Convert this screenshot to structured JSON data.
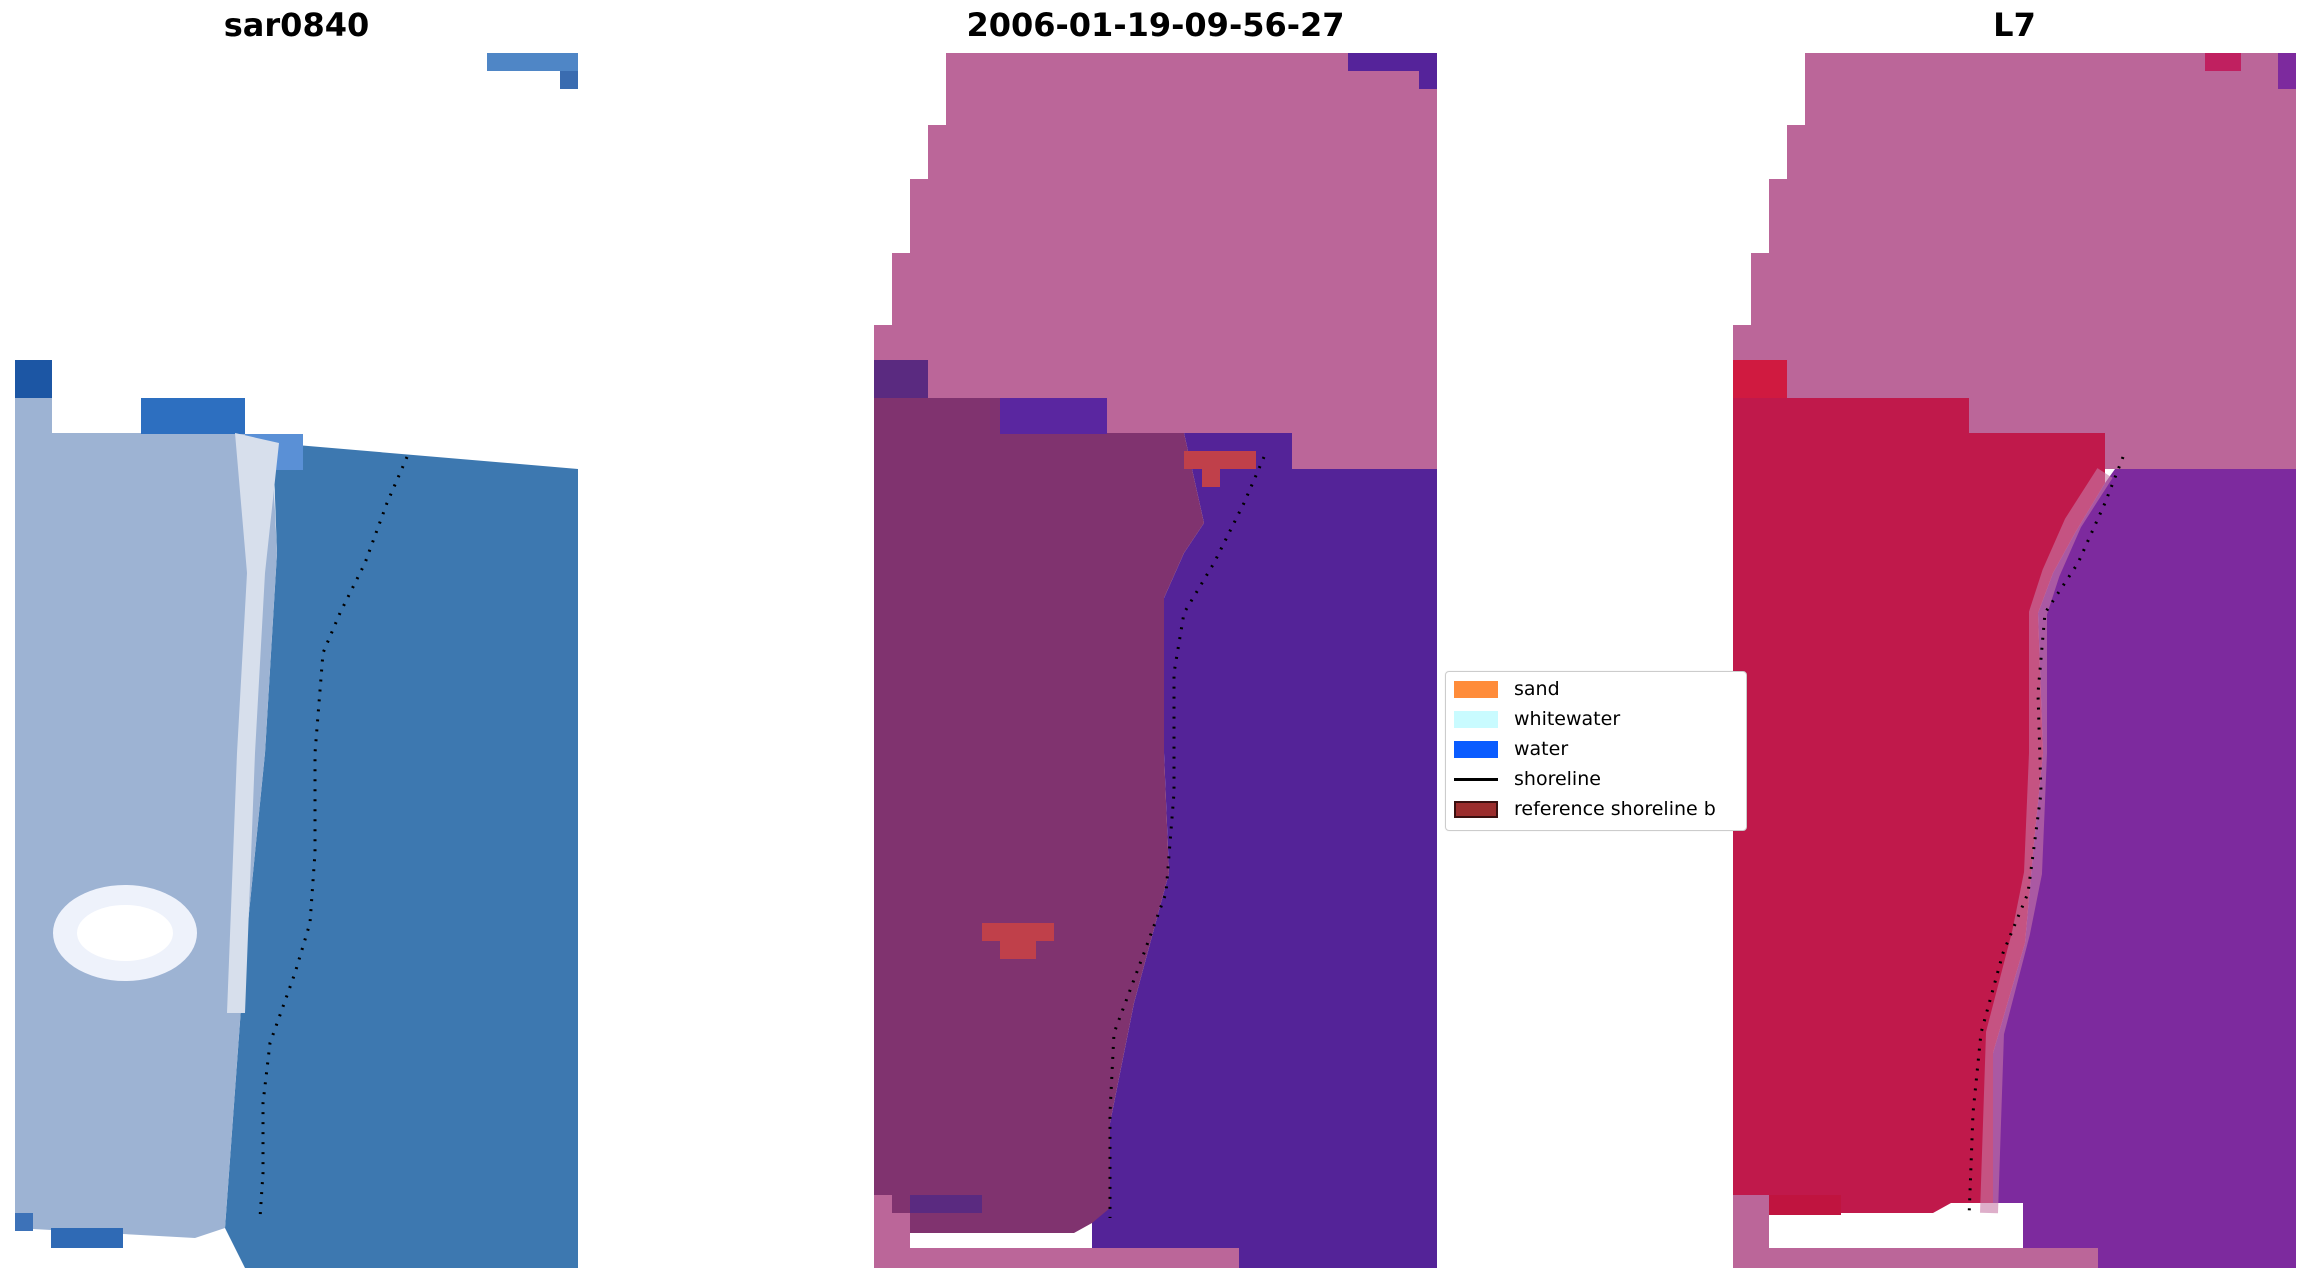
{
  "panels": [
    {
      "title": "sar0840"
    },
    {
      "title": "2006-01-19-09-56-27"
    },
    {
      "title": "L7"
    }
  ],
  "legend": {
    "items": [
      {
        "label": "sand",
        "color": "#ff8c3a",
        "kind": "patch"
      },
      {
        "label": "whitewater",
        "color": "#c9fbff",
        "kind": "patch"
      },
      {
        "label": "water",
        "color": "#0a5cff",
        "kind": "patch"
      },
      {
        "label": "shoreline",
        "color": "#000000",
        "kind": "line"
      },
      {
        "label": "reference shoreline b",
        "color": "#9b2d2d",
        "kind": "patch-outlined"
      }
    ]
  },
  "colors": {
    "sat_water": "#3d78b0",
    "sat_land": "#9bb2d2",
    "sat_whitewater": "#e9eef6",
    "cls_nodata": "#bb6699",
    "cls_water": "#542398",
    "cls_land": "#80336f",
    "cls_ref_buffer": "#c0404a",
    "mndwi_nodata": "#bb6699",
    "mndwi_land": "#c0194b",
    "mndwi_water": "#7d2a9e"
  }
}
